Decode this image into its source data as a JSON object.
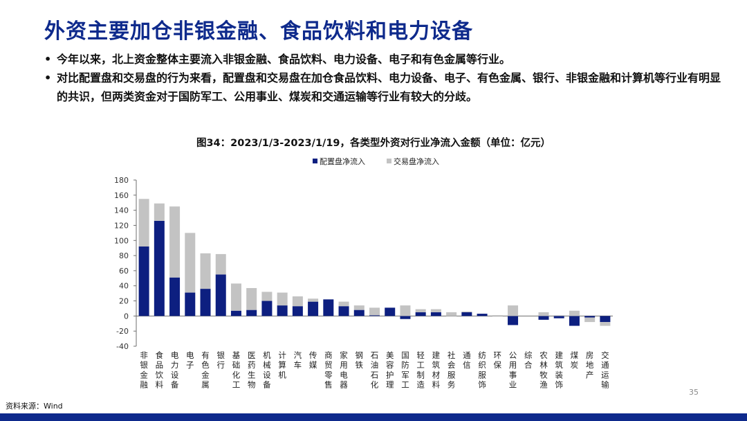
{
  "slide": {
    "title": "外资主要加仓非银金融、食品饮料和电力设备",
    "bullets": [
      "今年以来，北上资金整体主要流入非银金融、食品饮料、电力设备、电子和有色金属等行业。",
      "对比配置盘和交易盘的行为来看，配置盘和交易盘在加仓食品饮料、电力设备、电子、有色金属、银行、非银金融和计算机等行业有明显的共识，但两类资金对于国防军工、公用事业、煤炭和交通运输等行业有较大的分歧。"
    ],
    "bullet_symbol": "•",
    "source": "资料来源：Wind",
    "page_number": "35"
  },
  "colors": {
    "title": "#0e2a8c",
    "series_allocation": "#0d1f80",
    "series_trading": "#c3c3c3",
    "bottom_bar": "#0e2a8c"
  },
  "chart_data": {
    "type": "bar",
    "stacked": true,
    "title": "图34：2023/1/3-2023/1/19，各类型外资对行业净流入金额（单位：亿元）",
    "legend_position": "top-center",
    "grid": false,
    "ylim": [
      -40,
      180
    ],
    "yticks": [
      -40,
      -20,
      0,
      20,
      40,
      60,
      80,
      100,
      120,
      140,
      160,
      180
    ],
    "categories": [
      "非银金融",
      "食品饮料",
      "电力设备",
      "电子",
      "有色金属",
      "银行",
      "基础化工",
      "医药生物",
      "机械设备",
      "计算机",
      "汽车",
      "传媒",
      "商贸零售",
      "家用电器",
      "钢铁",
      "石油石化",
      "美容护理",
      "国防军工",
      "轻工制造",
      "建筑材料",
      "社会服务",
      "通信",
      "纺织服饰",
      "环保",
      "公用事业",
      "综合",
      "农林牧渔",
      "建筑装饰",
      "煤炭",
      "房地产",
      "交通运输"
    ],
    "series": [
      {
        "name": "配置盘净流入",
        "values": [
          92,
          126,
          51,
          31,
          36,
          55,
          7,
          8,
          20,
          14,
          13,
          19,
          22,
          13,
          8,
          1,
          11,
          -4,
          5,
          5,
          0,
          5,
          3,
          0,
          -12,
          0,
          -5,
          -3,
          -13,
          -2,
          -8
        ]
      },
      {
        "name": "交易盘净流入",
        "values": [
          63,
          23,
          94,
          79,
          47,
          27,
          36,
          29,
          12,
          17,
          13,
          4,
          0,
          6,
          6,
          10,
          0,
          14,
          4,
          4,
          5,
          1,
          0,
          1,
          14,
          0,
          5,
          1,
          7,
          -6,
          -5
        ]
      }
    ]
  }
}
